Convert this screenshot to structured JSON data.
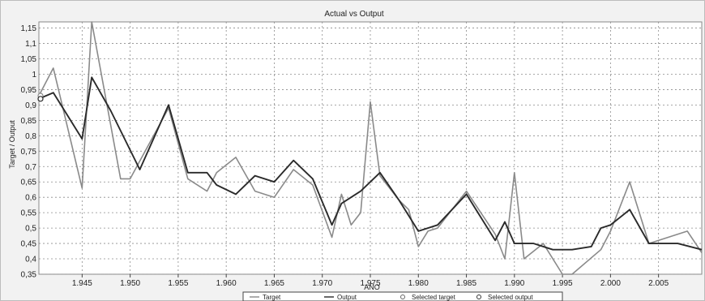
{
  "chart_data": {
    "type": "line",
    "title": "Actual vs Output",
    "xlabel": "AÑO",
    "ylabel": "Target / Output",
    "xlim": [
      1940.5,
      2009.5
    ],
    "ylim": [
      0.35,
      1.17
    ],
    "x_ticks": [
      1945,
      1950,
      1955,
      1960,
      1965,
      1970,
      1975,
      1980,
      1985,
      1990,
      1995,
      2000,
      2005
    ],
    "x_tick_labels": [
      "1.945",
      "1.950",
      "1.955",
      "1.960",
      "1.965",
      "1.970",
      "1.975",
      "1.980",
      "1.985",
      "1.990",
      "1.995",
      "2.000",
      "2.005"
    ],
    "y_ticks": [
      0.35,
      0.4,
      0.45,
      0.5,
      0.55,
      0.6,
      0.65,
      0.7,
      0.75,
      0.8,
      0.85,
      0.9,
      0.95,
      1.0,
      1.05,
      1.1,
      1.15
    ],
    "y_tick_labels": [
      "0,35",
      "0,4",
      "0,45",
      "0,5",
      "0,55",
      "0,6",
      "0,65",
      "0,7",
      "0,75",
      "0,8",
      "0,85",
      "0,9",
      "0,95",
      "1",
      "1,05",
      "1,1",
      "1,15"
    ],
    "grid": true,
    "legend_position": "bottom-right",
    "series": [
      {
        "name": "Target",
        "color": "#8a8a8a",
        "points": [
          [
            1940.5,
            0.93
          ],
          [
            1942,
            1.02
          ],
          [
            1945,
            0.63
          ],
          [
            1946,
            1.17
          ],
          [
            1949,
            0.66
          ],
          [
            1950,
            0.66
          ],
          [
            1954,
            0.89
          ],
          [
            1956,
            0.66
          ],
          [
            1958,
            0.62
          ],
          [
            1959,
            0.68
          ],
          [
            1961,
            0.73
          ],
          [
            1963,
            0.62
          ],
          [
            1965,
            0.6
          ],
          [
            1967,
            0.69
          ],
          [
            1969,
            0.64
          ],
          [
            1971,
            0.47
          ],
          [
            1972,
            0.61
          ],
          [
            1973,
            0.51
          ],
          [
            1974,
            0.55
          ],
          [
            1975,
            0.91
          ],
          [
            1976,
            0.67
          ],
          [
            1978,
            0.59
          ],
          [
            1979,
            0.56
          ],
          [
            1980,
            0.44
          ],
          [
            1981,
            0.49
          ],
          [
            1982,
            0.5
          ],
          [
            1985,
            0.62
          ],
          [
            1988,
            0.48
          ],
          [
            1989,
            0.4
          ],
          [
            1990,
            0.68
          ],
          [
            1991,
            0.4
          ],
          [
            1993,
            0.45
          ],
          [
            1995,
            0.35
          ],
          [
            1996,
            0.35
          ],
          [
            1999,
            0.43
          ],
          [
            2000,
            0.49
          ],
          [
            2002,
            0.65
          ],
          [
            2004,
            0.45
          ],
          [
            2006,
            0.47
          ],
          [
            2008,
            0.49
          ],
          [
            2009.5,
            0.42
          ]
        ]
      },
      {
        "name": "Output",
        "color": "#2a2a2a",
        "points": [
          [
            1940.5,
            0.92
          ],
          [
            1942,
            0.94
          ],
          [
            1945,
            0.79
          ],
          [
            1946,
            0.99
          ],
          [
            1948,
            0.88
          ],
          [
            1951,
            0.69
          ],
          [
            1954,
            0.9
          ],
          [
            1956,
            0.68
          ],
          [
            1958,
            0.68
          ],
          [
            1959,
            0.64
          ],
          [
            1961,
            0.61
          ],
          [
            1963,
            0.67
          ],
          [
            1965,
            0.65
          ],
          [
            1967,
            0.72
          ],
          [
            1969,
            0.66
          ],
          [
            1971,
            0.51
          ],
          [
            1972,
            0.58
          ],
          [
            1974,
            0.62
          ],
          [
            1976,
            0.68
          ],
          [
            1978,
            0.59
          ],
          [
            1980,
            0.49
          ],
          [
            1982,
            0.51
          ],
          [
            1985,
            0.61
          ],
          [
            1988,
            0.46
          ],
          [
            1989,
            0.52
          ],
          [
            1990,
            0.45
          ],
          [
            1992,
            0.45
          ],
          [
            1994,
            0.43
          ],
          [
            1996,
            0.43
          ],
          [
            1998,
            0.44
          ],
          [
            1999,
            0.5
          ],
          [
            2000,
            0.51
          ],
          [
            2002,
            0.56
          ],
          [
            2004,
            0.45
          ],
          [
            2007,
            0.45
          ],
          [
            2009.5,
            0.43
          ]
        ]
      }
    ],
    "legend": [
      {
        "label": "Target",
        "marker": "line"
      },
      {
        "label": "Output",
        "marker": "line"
      },
      {
        "label": "Selected target",
        "marker": "circle"
      },
      {
        "label": "Selected output",
        "marker": "circle"
      }
    ]
  }
}
